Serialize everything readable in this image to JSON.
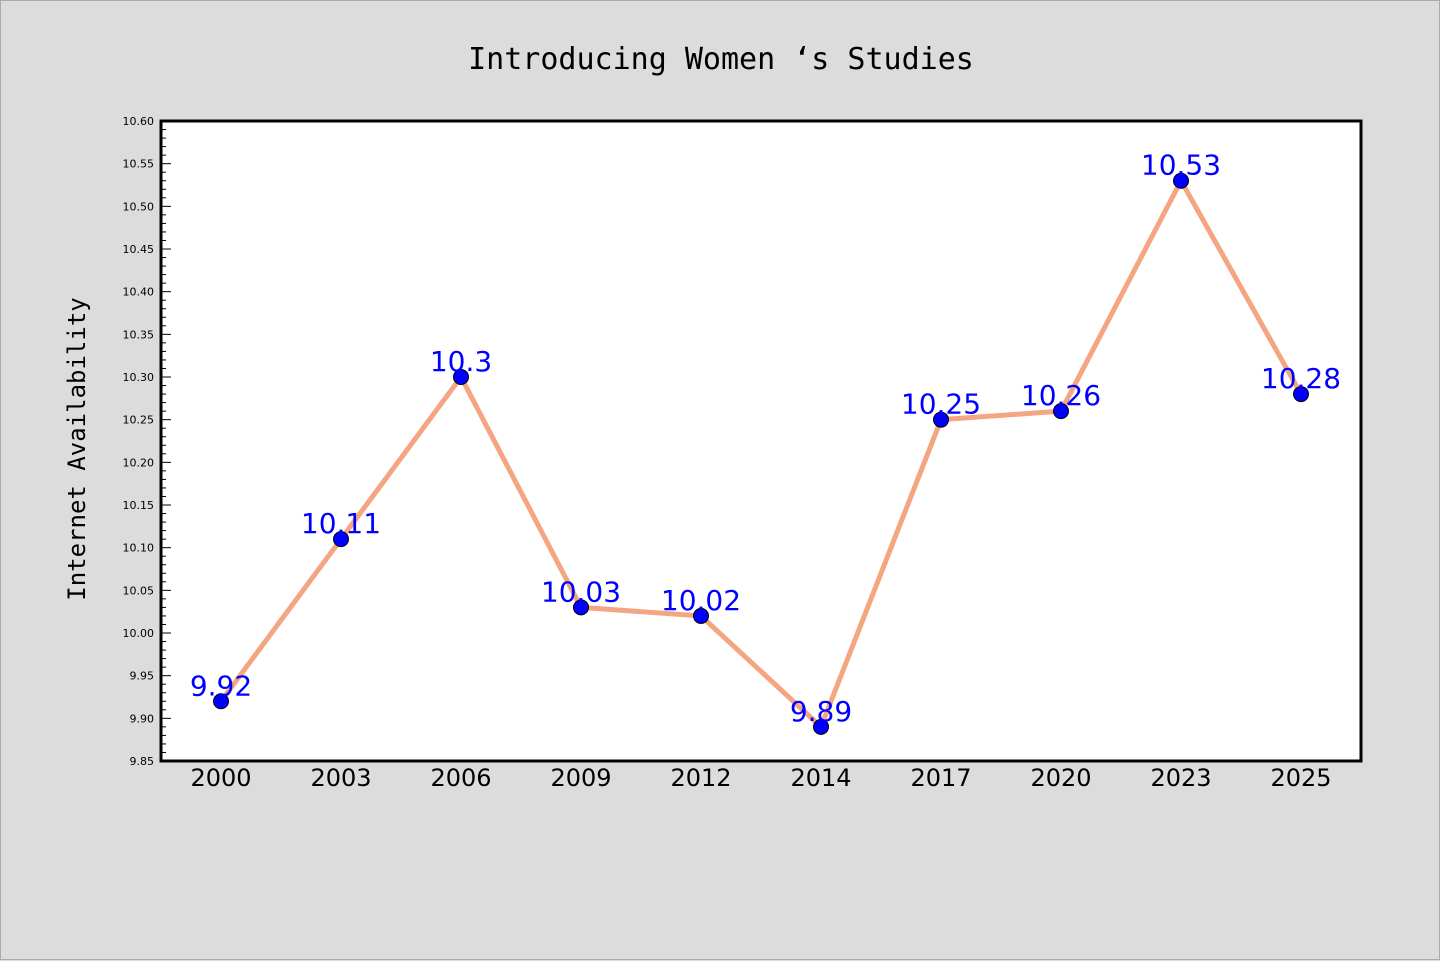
{
  "chart_data": {
    "type": "line",
    "title": "Introducing Women ‘s Studies",
    "xlabel": "",
    "ylabel": "Internet Availability",
    "categories": [
      "2000",
      "2003",
      "2006",
      "2009",
      "2012",
      "2014",
      "2017",
      "2020",
      "2023",
      "2025"
    ],
    "series": [
      {
        "values": [
          9.92,
          10.11,
          10.3,
          10.03,
          10.02,
          9.89,
          10.25,
          10.26,
          10.53,
          10.28
        ],
        "data_labels": [
          "9.92",
          "10.11",
          "10.3",
          "10.03",
          "10.02",
          "9.89",
          "10.25",
          "10.26",
          "10.53",
          "10.28"
        ]
      }
    ],
    "ylim": [
      9.85,
      10.6
    ],
    "yticks": [
      "9.85",
      "9.90",
      "9.95",
      "10.00",
      "10.05",
      "10.10",
      "10.15",
      "10.20",
      "10.25",
      "10.30",
      "10.35",
      "10.40",
      "10.45",
      "10.50",
      "10.55",
      "10.60"
    ],
    "grid": false,
    "legend": "none",
    "colors": {
      "line": "#f4a582",
      "marker": "#0000ff",
      "data_label": "#0000ff",
      "background": "#dcdcdc",
      "plot_background": "#ffffff"
    }
  }
}
